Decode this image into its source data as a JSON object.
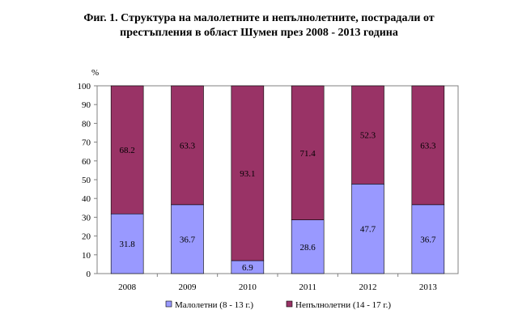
{
  "chart_data": {
    "type": "bar",
    "stacked": true,
    "title_line1": "Фиг. 1. Структура на малолетните и непълнолетните, пострадали от",
    "title_line2": "престъпления в област Шумен през 2008  - 2013 година",
    "ylabel": "%",
    "ylim": [
      0,
      100
    ],
    "yticks": [
      0,
      10,
      20,
      30,
      40,
      50,
      60,
      70,
      80,
      90,
      100
    ],
    "categories": [
      "2008",
      "2009",
      "2010",
      "2011",
      "2012",
      "2013"
    ],
    "series": [
      {
        "name": "Малолетни (8 - 13 г.)",
        "color": "#9999ff",
        "values": [
          31.8,
          36.7,
          6.9,
          28.6,
          47.7,
          36.7
        ]
      },
      {
        "name": "Непълнолетни (14 - 17 г.)",
        "color": "#993366",
        "values": [
          68.2,
          63.3,
          93.1,
          71.4,
          52.3,
          63.3
        ]
      }
    ],
    "legend_position": "bottom",
    "grid": false
  }
}
